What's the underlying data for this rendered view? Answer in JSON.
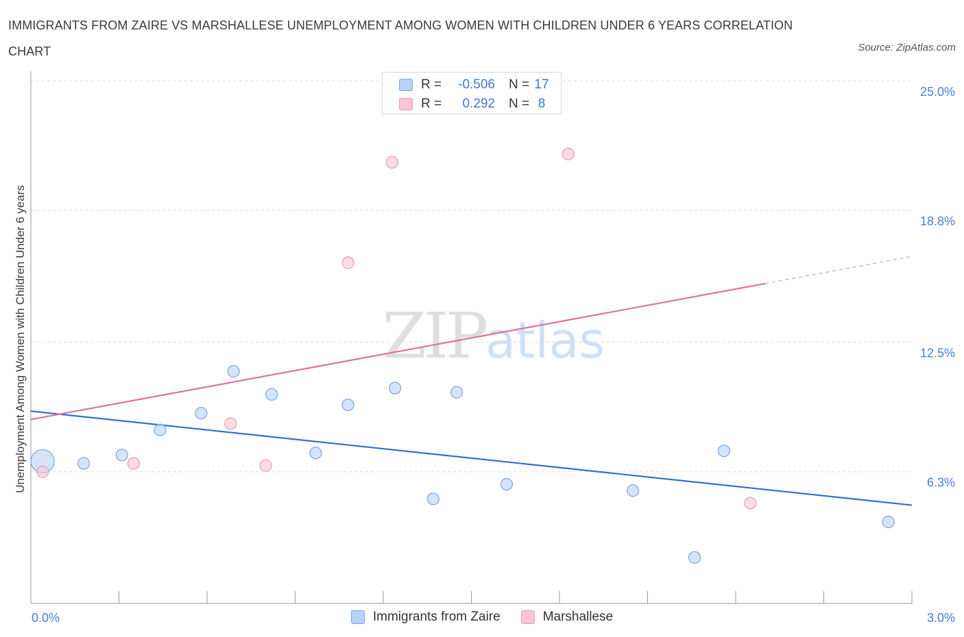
{
  "chart_data": {
    "type": "scatter",
    "title": "IMMIGRANTS FROM ZAIRE VS MARSHALLESE UNEMPLOYMENT AMONG WOMEN WITH CHILDREN UNDER 6 YEARS CORRELATION CHART",
    "source": "Source: ZipAtlas.com",
    "ylabel": "Unemployment Among Women with Children Under 6 years",
    "xlabel": "",
    "xlim": [
      0,
      3.0
    ],
    "ylim": [
      0,
      25.0
    ],
    "x_tick_labels": [
      "0.0%",
      "3.0%"
    ],
    "y_tick_labels": [
      "25.0%",
      "18.8%",
      "12.5%",
      "6.3%"
    ],
    "y_tick_values": [
      25.0,
      18.8,
      12.5,
      6.3
    ],
    "grid": true,
    "legend_placement": "top-center",
    "watermark": "ZIPatlas",
    "colors": {
      "zaire_fill": "#b9d2f5",
      "zaire_stroke": "#7aa6e6",
      "zaire_line": "#2f6fd0",
      "marsh_fill": "#f8c5d3",
      "marsh_stroke": "#ec9bb3",
      "marsh_line": "#e07199",
      "tick": "#4a7fd0"
    },
    "legend": {
      "r_label": "R =",
      "n_label": "N =",
      "zaire_r": "-0.506",
      "zaire_n": "17",
      "marsh_r": "0.292",
      "marsh_n": "8"
    },
    "series": [
      {
        "name": "Immigrants from Zaire",
        "key": "zaire",
        "points": [
          {
            "x": 0.04,
            "y": 6.8,
            "big": true
          },
          {
            "x": 0.18,
            "y": 6.7
          },
          {
            "x": 0.31,
            "y": 7.1
          },
          {
            "x": 0.44,
            "y": 8.3
          },
          {
            "x": 0.58,
            "y": 9.1
          },
          {
            "x": 0.69,
            "y": 11.1
          },
          {
            "x": 0.82,
            "y": 10.0
          },
          {
            "x": 0.97,
            "y": 7.2
          },
          {
            "x": 1.08,
            "y": 9.5
          },
          {
            "x": 1.24,
            "y": 10.3
          },
          {
            "x": 1.37,
            "y": 5.0
          },
          {
            "x": 1.45,
            "y": 10.1
          },
          {
            "x": 1.62,
            "y": 5.7
          },
          {
            "x": 2.05,
            "y": 5.4
          },
          {
            "x": 2.26,
            "y": 2.2
          },
          {
            "x": 2.36,
            "y": 7.3
          },
          {
            "x": 2.92,
            "y": 3.9
          }
        ],
        "trend": {
          "x0": 0.0,
          "y0": 9.2,
          "x1": 3.0,
          "y1": 4.7
        }
      },
      {
        "name": "Marshallese",
        "key": "marsh",
        "points": [
          {
            "x": 0.04,
            "y": 6.3
          },
          {
            "x": 0.35,
            "y": 6.7
          },
          {
            "x": 0.68,
            "y": 8.6
          },
          {
            "x": 0.8,
            "y": 6.6
          },
          {
            "x": 1.08,
            "y": 16.3
          },
          {
            "x": 1.23,
            "y": 21.1
          },
          {
            "x": 1.83,
            "y": 21.5
          },
          {
            "x": 2.45,
            "y": 4.8
          }
        ],
        "trend": {
          "x0": 0.0,
          "y0": 8.8,
          "x1": 2.5,
          "y1": 15.3
        },
        "trend_ext": {
          "x0": 2.5,
          "y0": 15.3,
          "x1": 3.0,
          "y1": 16.6
        }
      }
    ]
  }
}
